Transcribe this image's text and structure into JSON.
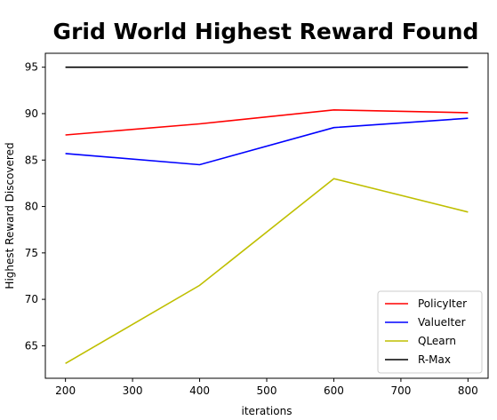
{
  "chart_data": {
    "type": "line",
    "title": "Grid World Highest Reward Found",
    "xlabel": "iterations",
    "ylabel": "Highest Reward Discovered",
    "x": [
      200,
      400,
      600,
      800
    ],
    "xticks": [
      200,
      300,
      400,
      500,
      600,
      700,
      800
    ],
    "yticks": [
      65,
      70,
      75,
      80,
      85,
      90,
      95
    ],
    "xlim": [
      170,
      830
    ],
    "ylim": [
      61.5,
      96.5
    ],
    "grid": false,
    "legend_position": "lower-right",
    "series": [
      {
        "name": "PolicyIter",
        "color": "#ff0000",
        "values": [
          87.7,
          88.9,
          90.4,
          90.1
        ]
      },
      {
        "name": "ValueIter",
        "color": "#0000ff",
        "values": [
          85.7,
          84.5,
          88.5,
          89.5
        ]
      },
      {
        "name": "QLearn",
        "color": "#bfbf00",
        "values": [
          63.1,
          71.5,
          83.0,
          79.4
        ]
      },
      {
        "name": "R-Max",
        "color": "#000000",
        "values": [
          95.0,
          95.0,
          95.0,
          95.0
        ]
      }
    ]
  }
}
